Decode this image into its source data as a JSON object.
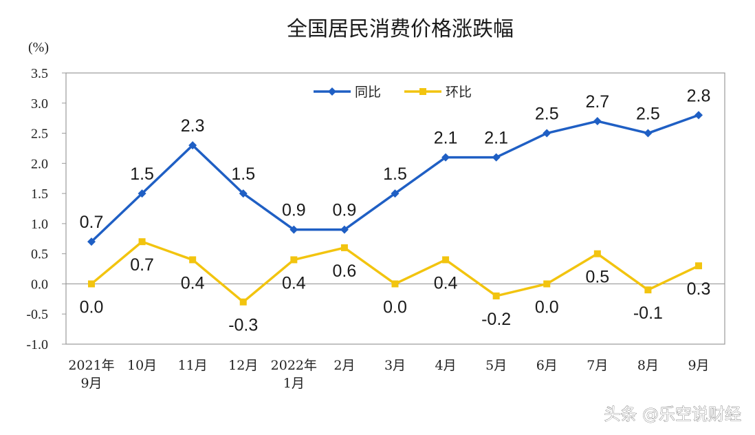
{
  "chart_data": {
    "type": "line",
    "title": "全国居民消费价格涨跌幅",
    "y_unit": "(%)",
    "ylim": [
      -1.0,
      3.5
    ],
    "yticks": [
      "3.5",
      "3.0",
      "2.5",
      "2.0",
      "1.5",
      "1.0",
      "0.5",
      "0.0",
      "-0.5",
      "-1.0"
    ],
    "ytick_values": [
      3.5,
      3.0,
      2.5,
      2.0,
      1.5,
      1.0,
      0.5,
      0.0,
      -0.5,
      -1.0
    ],
    "categories": [
      [
        "2021年",
        "9月"
      ],
      [
        "10月"
      ],
      [
        "11月"
      ],
      [
        "12月"
      ],
      [
        "2022年",
        "1月"
      ],
      [
        "2月"
      ],
      [
        "3月"
      ],
      [
        "4月"
      ],
      [
        "5月"
      ],
      [
        "6月"
      ],
      [
        "7月"
      ],
      [
        "8月"
      ],
      [
        "9月"
      ]
    ],
    "series": [
      {
        "name": "同比",
        "color": "#1f5fc4",
        "marker": "diamond",
        "values": [
          0.7,
          1.5,
          2.3,
          1.5,
          0.9,
          0.9,
          1.5,
          2.1,
          2.1,
          2.5,
          2.7,
          2.5,
          2.8
        ],
        "labels": [
          "0.7",
          "1.5",
          "2.3",
          "1.5",
          "0.9",
          "0.9",
          "1.5",
          "2.1",
          "2.1",
          "2.5",
          "2.7",
          "2.5",
          "2.8"
        ]
      },
      {
        "name": "环比",
        "color": "#f2c40f",
        "marker": "square",
        "values": [
          0.0,
          0.7,
          0.4,
          -0.3,
          0.4,
          0.6,
          0.0,
          0.4,
          -0.2,
          0.0,
          0.5,
          -0.1,
          0.3
        ],
        "labels": [
          "0.0",
          "0.7",
          "0.4",
          "-0.3",
          "0.4",
          "0.6",
          "0.0",
          "0.4",
          "-0.2",
          "0.0",
          "0.5",
          "-0.1",
          "0.3"
        ]
      }
    ],
    "grid": false,
    "legend": "top-center"
  },
  "watermark": "头条 @乐空说财经"
}
